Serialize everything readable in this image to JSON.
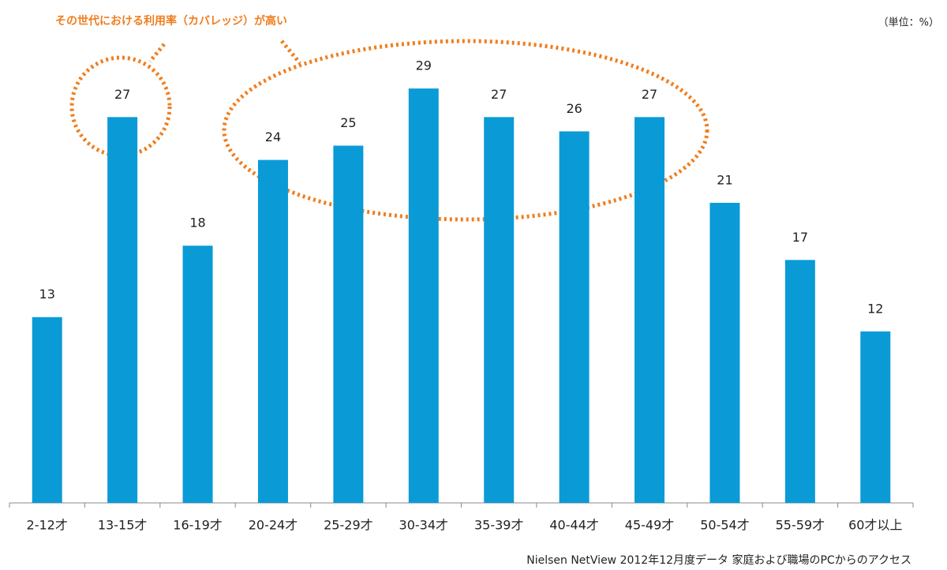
{
  "chart_data": {
    "type": "bar",
    "annotation": "その世代における利用率（カバレッジ）が高い",
    "unit": "（単位：%）",
    "source": "Nielsen NetView 2012年12月度データ 家庭および職場のPCからのアクセス",
    "categories": [
      "2-12才",
      "13-15才",
      "16-19才",
      "20-24才",
      "25-29才",
      "30-34才",
      "35-39才",
      "40-44才",
      "45-49才",
      "50-54才",
      "55-59才",
      "60才以上"
    ],
    "values": [
      13,
      27,
      18,
      24,
      25,
      29,
      27,
      26,
      27,
      21,
      17,
      12
    ],
    "color": "#0a9bd7",
    "ylim": [
      0,
      30
    ]
  }
}
